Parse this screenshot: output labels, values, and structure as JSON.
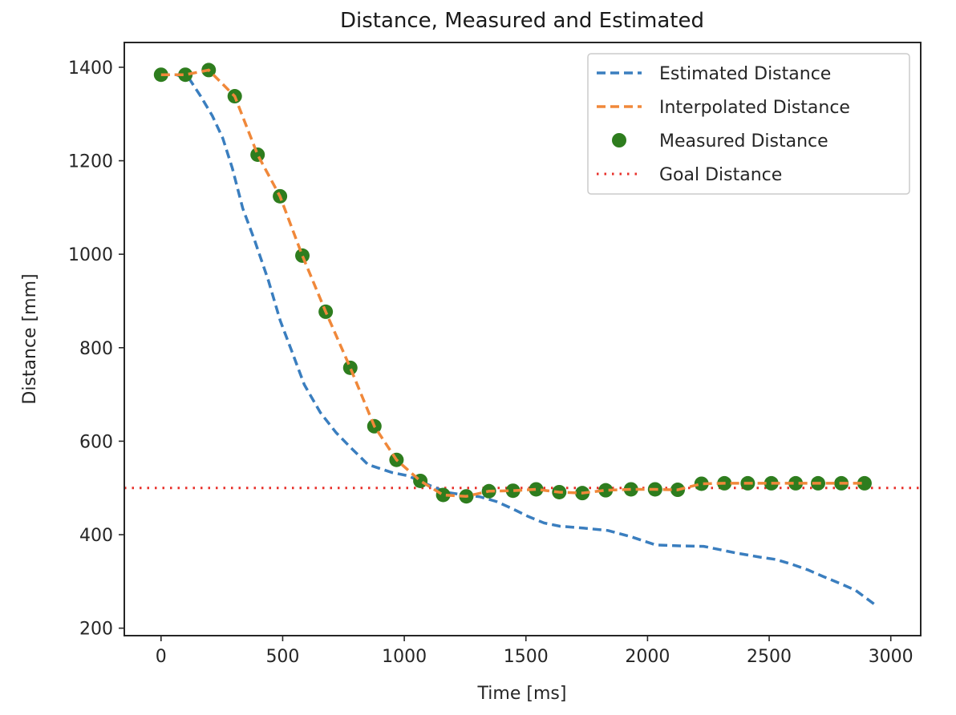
{
  "chart_data": {
    "type": "line",
    "title": "Distance, Measured and Estimated",
    "xlabel": "Time [ms]",
    "ylabel": "Distance [mm]",
    "xlim": [
      -151,
      3123
    ],
    "ylim": [
      184,
      1453
    ],
    "xticks": [
      0,
      500,
      1000,
      1500,
      2000,
      2500,
      3000
    ],
    "xtick_labels": [
      "0",
      "500",
      "1000",
      "1500",
      "2000",
      "2500",
      "3000"
    ],
    "yticks": [
      200,
      400,
      600,
      800,
      1000,
      1200,
      1400
    ],
    "ytick_labels": [
      "200",
      "400",
      "600",
      "800",
      "1000",
      "1200",
      "1400"
    ],
    "grid": false,
    "legend_position": "top-right",
    "series": [
      {
        "name": "Estimated Distance",
        "kind": "line",
        "style": "dashed",
        "color": "#3a7ebf",
        "x": [
          0,
          63,
          119,
          162,
          211,
          254,
          293,
          336,
          385,
          441,
          490,
          540,
          589,
          655,
          720,
          786,
          851,
          950,
          1016,
          1115,
          1181,
          1246,
          1312,
          1378,
          1443,
          1509,
          1575,
          1640,
          1739,
          1837,
          1936,
          2034,
          2133,
          2231,
          2297,
          2362,
          2461,
          2527,
          2592,
          2658,
          2724,
          2790,
          2855,
          2941
        ],
        "y": [
          1384,
          1384,
          1373,
          1339,
          1296,
          1248,
          1184,
          1098,
          1029,
          944,
          858,
          789,
          721,
          661,
          618,
          583,
          550,
          533,
          526,
          503,
          490,
          485,
          481,
          471,
          456,
          439,
          425,
          418,
          414,
          409,
          395,
          378,
          376,
          375,
          368,
          361,
          352,
          347,
          337,
          325,
          310,
          296,
          281,
          248
        ]
      },
      {
        "name": "Interpolated Distance",
        "kind": "line",
        "style": "dashed",
        "color": "#f0883a",
        "x": [
          0,
          100,
          196,
          303,
          397,
          489,
          581,
          677,
          778,
          877,
          968,
          1066,
          1160,
          1255,
          1348,
          1447,
          1542,
          1637,
          1732,
          1828,
          1932,
          2031,
          2124,
          2222,
          2316,
          2412,
          2509,
          2609,
          2701,
          2797,
          2892
        ],
        "y": [
          1384,
          1384,
          1394,
          1338,
          1213,
          1124,
          997,
          877,
          757,
          632,
          560,
          515,
          485,
          482,
          493,
          494,
          497,
          491,
          489,
          495,
          497,
          497,
          496,
          509,
          510,
          510,
          510,
          510,
          510,
          510,
          510
        ]
      },
      {
        "name": "Measured Distance",
        "kind": "scatter",
        "color": "#2e7d1e",
        "x": [
          0,
          100,
          196,
          303,
          397,
          489,
          581,
          677,
          778,
          877,
          968,
          1066,
          1160,
          1255,
          1348,
          1447,
          1542,
          1637,
          1732,
          1828,
          1932,
          2031,
          2124,
          2222,
          2316,
          2412,
          2509,
          2609,
          2701,
          2797,
          2892
        ],
        "y": [
          1384,
          1384,
          1394,
          1338,
          1213,
          1124,
          997,
          877,
          757,
          632,
          560,
          515,
          485,
          482,
          493,
          494,
          497,
          491,
          489,
          495,
          497,
          497,
          496,
          509,
          510,
          510,
          510,
          510,
          510,
          510,
          510
        ]
      },
      {
        "name": "Goal Distance",
        "kind": "hline",
        "style": "dotted",
        "color": "#e8302a",
        "y": 500
      }
    ]
  }
}
